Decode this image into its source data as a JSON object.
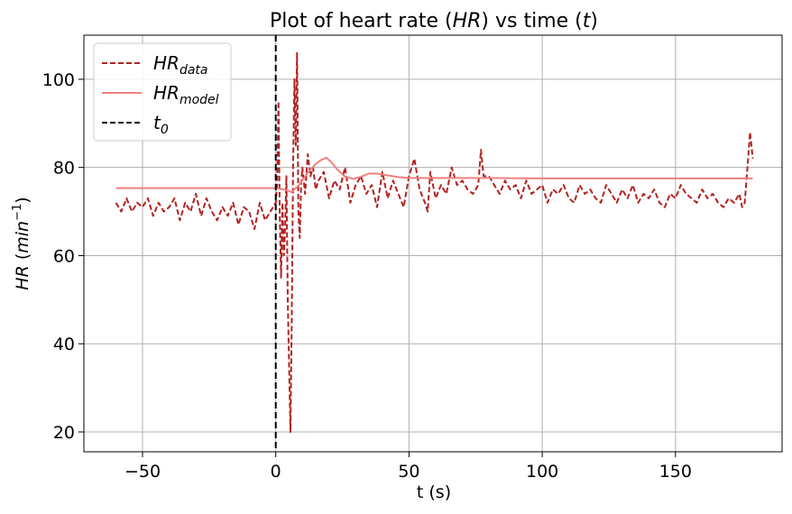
{
  "chart_data": {
    "type": "line",
    "title": {
      "prefix": "Plot of heart rate (",
      "var1": "HR",
      "middle": ") vs time (",
      "var2": "t",
      "suffix": ")"
    },
    "xlabel": "t (s)",
    "ylabel": {
      "var": "HR",
      "open": " (",
      "unit": "min",
      "exp": "−1",
      "close": ")"
    },
    "xlim": [
      -72,
      190
    ],
    "ylim": [
      15.5,
      110
    ],
    "x_ticks": [
      -50,
      0,
      50,
      100,
      150
    ],
    "x_tick_labels": [
      "−50",
      "0",
      "50",
      "100",
      "150"
    ],
    "y_ticks": [
      20,
      40,
      60,
      80,
      100
    ],
    "y_tick_labels": [
      "20",
      "40",
      "60",
      "80",
      "100"
    ],
    "grid": true,
    "legend_position": "top-left",
    "legend": [
      {
        "base": "HR",
        "sub": "data",
        "style": "dashed",
        "color": "#b22222"
      },
      {
        "base": "HR",
        "sub": "model",
        "style": "solid",
        "color": "#f08080"
      },
      {
        "base": "t",
        "sub": "0",
        "style": "dashed",
        "color": "#000000"
      }
    ],
    "t0_line": {
      "x": 0,
      "color": "#000000",
      "style": "dashed"
    },
    "series": [
      {
        "name": "HR_data",
        "color": "#b22222",
        "style": "dashed",
        "x": [
          -60,
          -58,
          -56,
          -54,
          -52,
          -50,
          -48,
          -46,
          -44,
          -42,
          -40,
          -38,
          -36,
          -34,
          -32,
          -30,
          -28,
          -26,
          -24,
          -22,
          -20,
          -18,
          -16,
          -14,
          -12,
          -10,
          -8,
          -6,
          -4,
          -2,
          -1,
          0,
          0.5,
          1,
          1.5,
          2,
          2.5,
          3,
          3.5,
          4,
          4.5,
          5,
          5.5,
          6,
          6.5,
          7,
          7.5,
          8,
          8.5,
          9,
          9.5,
          10,
          11,
          12,
          13,
          14,
          15,
          16,
          18,
          20,
          22,
          24,
          26,
          28,
          30,
          32,
          34,
          36,
          38,
          40,
          42,
          44,
          46,
          48,
          50,
          52,
          54,
          56,
          57,
          58,
          60,
          62,
          64,
          66,
          68,
          70,
          72,
          74,
          76,
          77,
          78,
          80,
          82,
          84,
          86,
          88,
          90,
          92,
          94,
          96,
          98,
          100,
          102,
          104,
          106,
          108,
          110,
          112,
          114,
          116,
          118,
          120,
          122,
          124,
          126,
          128,
          130,
          132,
          134,
          136,
          138,
          140,
          142,
          144,
          146,
          148,
          150,
          152,
          154,
          156,
          158,
          160,
          162,
          164,
          166,
          168,
          170,
          172,
          174,
          175,
          176,
          177,
          178,
          179
        ],
        "values": [
          72,
          70,
          73,
          70,
          72,
          71,
          73,
          69,
          72,
          70,
          71,
          73,
          68,
          72,
          70,
          74,
          69,
          73,
          70,
          68,
          71,
          69,
          72,
          67,
          71,
          70,
          66,
          72,
          68,
          70,
          71,
          72,
          76,
          95,
          70,
          55,
          72,
          60,
          66,
          78,
          50,
          35,
          20,
          45,
          80,
          100,
          85,
          106,
          70,
          64,
          76,
          80,
          74,
          83,
          78,
          80,
          75,
          77,
          79,
          73,
          77,
          75,
          80,
          72,
          76,
          78,
          74,
          76,
          71,
          79,
          73,
          77,
          74,
          71,
          78,
          82,
          75,
          72,
          70,
          79,
          73,
          76,
          74,
          80,
          76,
          77,
          75,
          74,
          76,
          84,
          78,
          78,
          76,
          74,
          77,
          75,
          76,
          73,
          77,
          74,
          75,
          76,
          72,
          75,
          74,
          76,
          73,
          72,
          76,
          74,
          75,
          73,
          72,
          76,
          74,
          72,
          75,
          73,
          76,
          72,
          74,
          73,
          75,
          72,
          71,
          74,
          73,
          76,
          74,
          73,
          72,
          75,
          73,
          74,
          72,
          71,
          73,
          72,
          74,
          71,
          72,
          80,
          88,
          82
        ]
      },
      {
        "name": "HR_model",
        "color": "#f08080",
        "style": "solid",
        "x": [
          -60,
          -40,
          -20,
          -5,
          0,
          3,
          6,
          9,
          12,
          15,
          17,
          19,
          21,
          23,
          26,
          29,
          32,
          35,
          38,
          42,
          46,
          50,
          55,
          60,
          70,
          80,
          100,
          130,
          160,
          179
        ],
        "values": [
          75.3,
          75.3,
          75.3,
          75.3,
          75.3,
          75.0,
          74.4,
          76.2,
          78.8,
          80.8,
          81.7,
          82.2,
          81.1,
          79.6,
          77.9,
          77.4,
          77.9,
          78.6,
          78.6,
          78.2,
          77.8,
          77.6,
          77.6,
          77.6,
          77.6,
          77.6,
          77.5,
          77.5,
          77.5,
          77.5
        ]
      }
    ]
  }
}
